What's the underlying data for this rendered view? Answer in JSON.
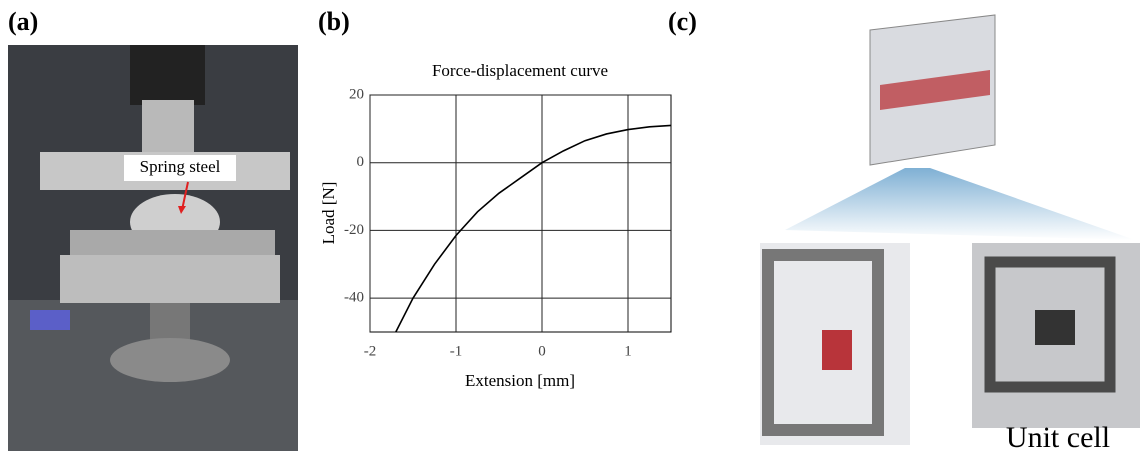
{
  "panels": {
    "a": "(a)",
    "b": "(b)",
    "c": "(c)",
    "annotation": "Spring steel",
    "caption": "Unit cell"
  },
  "chart_data": {
    "type": "line",
    "title": "Force-displacement curve",
    "x_label": "Extension [mm]",
    "y_label": "Load [N]",
    "x": [
      -1.7,
      -1.5,
      -1.25,
      -1,
      -0.75,
      -0.5,
      -0.25,
      0,
      0.25,
      0.5,
      0.75,
      1,
      1.25,
      1.5
    ],
    "values": [
      -50,
      -40,
      -30,
      -21.5,
      -14.5,
      -9,
      -4.5,
      0,
      3.5,
      6.5,
      8.5,
      9.8,
      10.6,
      11
    ],
    "color": "#000000",
    "xlim": [
      -2,
      1.5
    ],
    "ylim": [
      -50,
      20
    ],
    "xticks": [
      -2,
      -1,
      0,
      1
    ],
    "yticks": [
      -40,
      -20,
      0,
      20
    ],
    "grid": true
  }
}
